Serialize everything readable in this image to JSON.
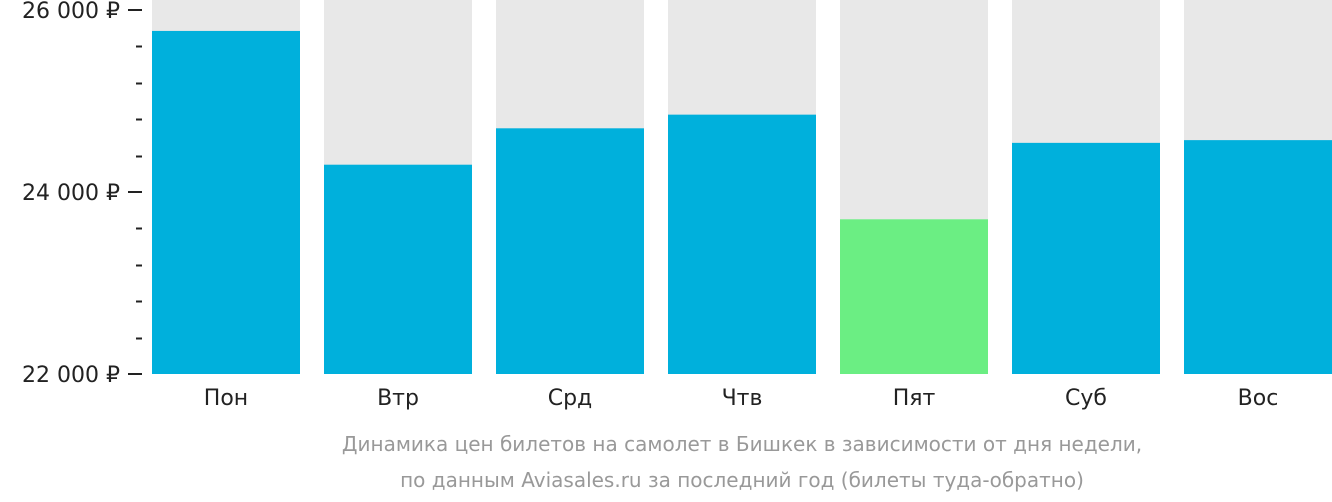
{
  "colors": {
    "bar": "#00b0dc",
    "bar_highlight": "#6bee83",
    "bar_background": "#e8e8e8",
    "axis": "#222222",
    "caption": "#999999"
  },
  "chart_data": {
    "type": "bar",
    "categories": [
      "Пон",
      "Втр",
      "Срд",
      "Чтв",
      "Пят",
      "Суб",
      "Вос"
    ],
    "values": [
      25770,
      24300,
      24700,
      24850,
      23700,
      24540,
      24570
    ],
    "highlight_index": 4,
    "ylim": [
      22000,
      26000
    ],
    "y_ticks": [
      {
        "value": 26000,
        "label": "26 000 ₽"
      },
      {
        "value": 24000,
        "label": "24 000 ₽"
      },
      {
        "value": 22000,
        "label": "22 000 ₽"
      }
    ],
    "minor_tick_step": 400,
    "caption": [
      "Динамика цен билетов на самолет в Бишкек в зависимости от дня недели,",
      "по данным Aviasales.ru за последний год (билеты туда-обратно)"
    ]
  }
}
